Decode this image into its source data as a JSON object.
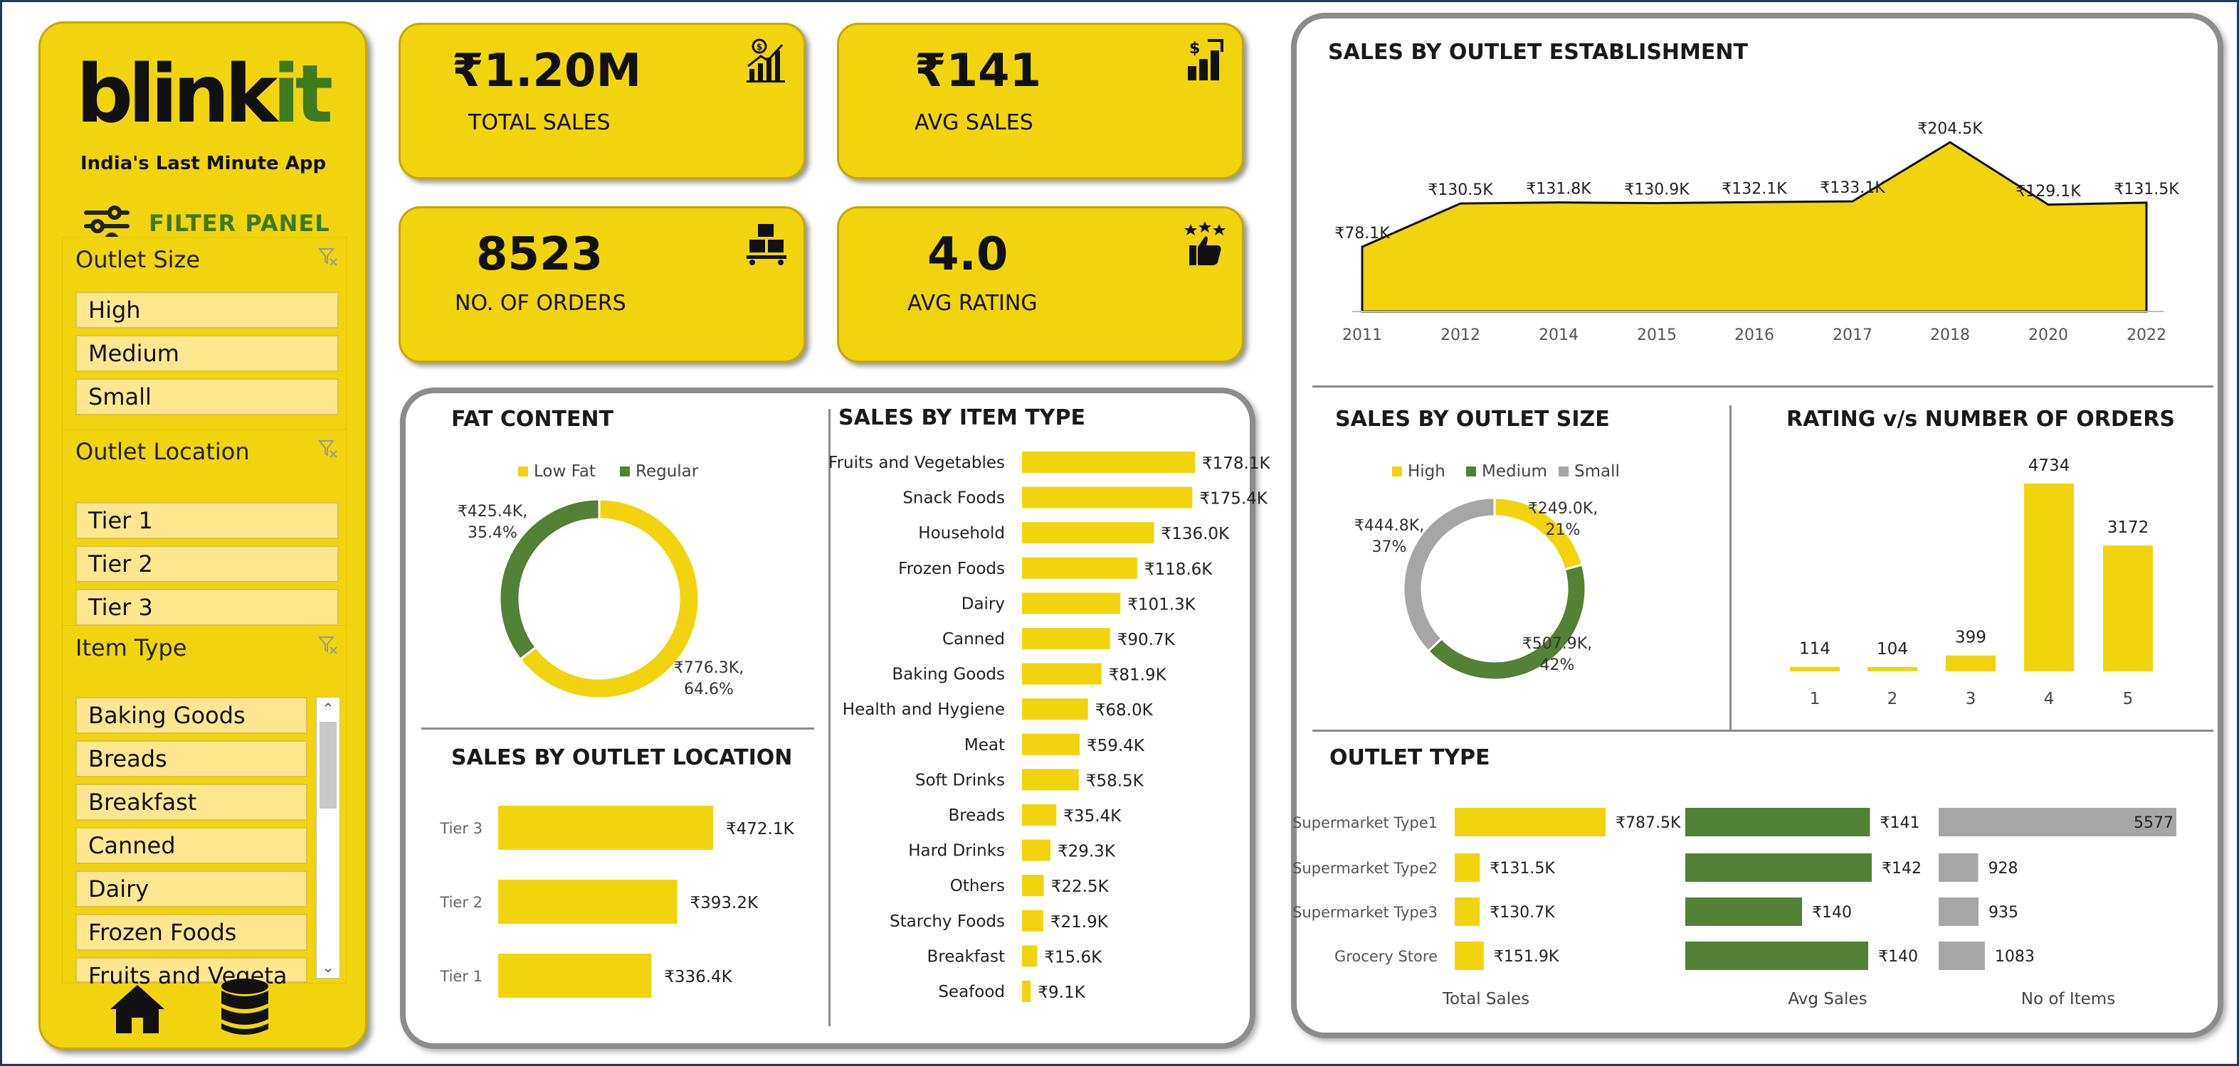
{
  "app": {
    "logo_main": "blink",
    "logo_accent": "it",
    "tagline": "India's Last Minute App",
    "filter_panel_label": "FILTER PANEL"
  },
  "filters": {
    "outlet_size": {
      "label": "Outlet Size",
      "items": [
        "High",
        "Medium",
        "Small"
      ]
    },
    "outlet_location": {
      "label": "Outlet Location",
      "items": [
        "Tier 1",
        "Tier 2",
        "Tier 3"
      ]
    },
    "item_type": {
      "label": "Item Type",
      "items": [
        "Baking Goods",
        "Breads",
        "Breakfast",
        "Canned",
        "Dairy",
        "Frozen Foods",
        "Fruits and Vegeta"
      ]
    }
  },
  "kpis": {
    "total_sales": {
      "value": "₹1.20M",
      "label": "TOTAL SALES"
    },
    "avg_sales": {
      "value": "₹141",
      "label": "AVG SALES"
    },
    "orders": {
      "value": "8523",
      "label": "NO. OF ORDERS"
    },
    "avg_rating": {
      "value": "4.0",
      "label": "AVG RATING"
    }
  },
  "colors": {
    "yellow": "#f2d40e",
    "green": "#538135",
    "grey": "#a6a6a6",
    "dark_green": "#3e7a1e"
  },
  "icons": [
    "bar-chart-trend-icon",
    "sales-growth-icon",
    "boxes-icon",
    "stars-thumbs-up-icon",
    "filter-sliders-icon",
    "clear-filter-icon",
    "home-icon",
    "database-icon"
  ],
  "chart_data": [
    {
      "id": "establishment",
      "type": "area",
      "title": "SALES BY OUTLET ESTABLISHMENT",
      "x": [
        "2011",
        "2012",
        "2014",
        "2015",
        "2016",
        "2017",
        "2018",
        "2020",
        "2022"
      ],
      "values": [
        78.1,
        130.5,
        131.8,
        130.9,
        132.1,
        133.1,
        204.5,
        129.1,
        131.5
      ],
      "labels": [
        "₹78.1K",
        "₹130.5K",
        "₹131.8K",
        "₹130.9K",
        "₹132.1K",
        "₹133.1K",
        "₹204.5K",
        "₹129.1K",
        "₹131.5K"
      ],
      "unit": "₹K"
    },
    {
      "id": "fat",
      "type": "pie",
      "title": "FAT CONTENT",
      "series": [
        {
          "name": "Low Fat",
          "value": 776.3,
          "label": "₹776.3K,",
          "pct": "64.6%"
        },
        {
          "name": "Regular",
          "value": 425.4,
          "label": "₹425.4K,",
          "pct": "35.4%"
        }
      ],
      "legend": "top"
    },
    {
      "id": "item_type",
      "type": "bar",
      "title": "SALES BY ITEM TYPE",
      "categories": [
        "Fruits and Vegetables",
        "Snack Foods",
        "Household",
        "Frozen Foods",
        "Dairy",
        "Canned",
        "Baking Goods",
        "Health and Hygiene",
        "Meat",
        "Soft Drinks",
        "Breads",
        "Hard Drinks",
        "Others",
        "Starchy Foods",
        "Breakfast",
        "Seafood"
      ],
      "values": [
        178.1,
        175.4,
        136.0,
        118.6,
        101.3,
        90.7,
        81.9,
        68.0,
        59.4,
        58.5,
        35.4,
        29.3,
        22.5,
        21.9,
        15.6,
        9.1
      ],
      "labels": [
        "₹178.1K",
        "₹175.4K",
        "₹136.0K",
        "₹118.6K",
        "₹101.3K",
        "₹90.7K",
        "₹81.9K",
        "₹68.0K",
        "₹59.4K",
        "₹58.5K",
        "₹35.4K",
        "₹29.3K",
        "₹22.5K",
        "₹21.9K",
        "₹15.6K",
        "₹9.1K"
      ]
    },
    {
      "id": "location",
      "type": "bar",
      "title": "SALES BY OUTLET LOCATION",
      "categories": [
        "Tier 3",
        "Tier 2",
        "Tier 1"
      ],
      "values": [
        472.1,
        393.2,
        336.4
      ],
      "labels": [
        "₹472.1K",
        "₹393.2K",
        "₹336.4K"
      ]
    },
    {
      "id": "size",
      "type": "pie",
      "title": "SALES BY OUTLET SIZE",
      "series": [
        {
          "name": "High",
          "value": 249.0,
          "label": "₹249.0K,",
          "pct": "21%"
        },
        {
          "name": "Medium",
          "value": 507.9,
          "label": "₹507.9K,",
          "pct": "42%"
        },
        {
          "name": "Small",
          "value": 444.8,
          "label": "₹444.8K,",
          "pct": "37%"
        }
      ],
      "legend": "top"
    },
    {
      "id": "rating",
      "type": "bar",
      "title": "RATING v/s NUMBER OF ORDERS",
      "categories": [
        "1",
        "2",
        "3",
        "4",
        "5"
      ],
      "values": [
        114,
        104,
        399,
        4734,
        3172
      ]
    },
    {
      "id": "outlet_type",
      "type": "table",
      "title": "OUTLET TYPE",
      "categories": [
        "Supermarket Type1",
        "Supermarket Type2",
        "Supermarket Type3",
        "Grocery Store"
      ],
      "columns": [
        {
          "name": "Total Sales",
          "values": [
            787.5,
            131.5,
            130.7,
            151.9
          ],
          "labels": [
            "₹787.5K",
            "₹131.5K",
            "₹130.7K",
            "₹151.9K"
          ]
        },
        {
          "name": "Avg Sales",
          "values": [
            141,
            142,
            140,
            140
          ],
          "labels": [
            "₹141",
            "₹142",
            "₹140",
            "₹140"
          ]
        },
        {
          "name": "No of Items",
          "values": [
            5577,
            928,
            935,
            1083
          ],
          "labels": [
            "5577",
            "928",
            "935",
            "1083"
          ]
        }
      ]
    }
  ]
}
